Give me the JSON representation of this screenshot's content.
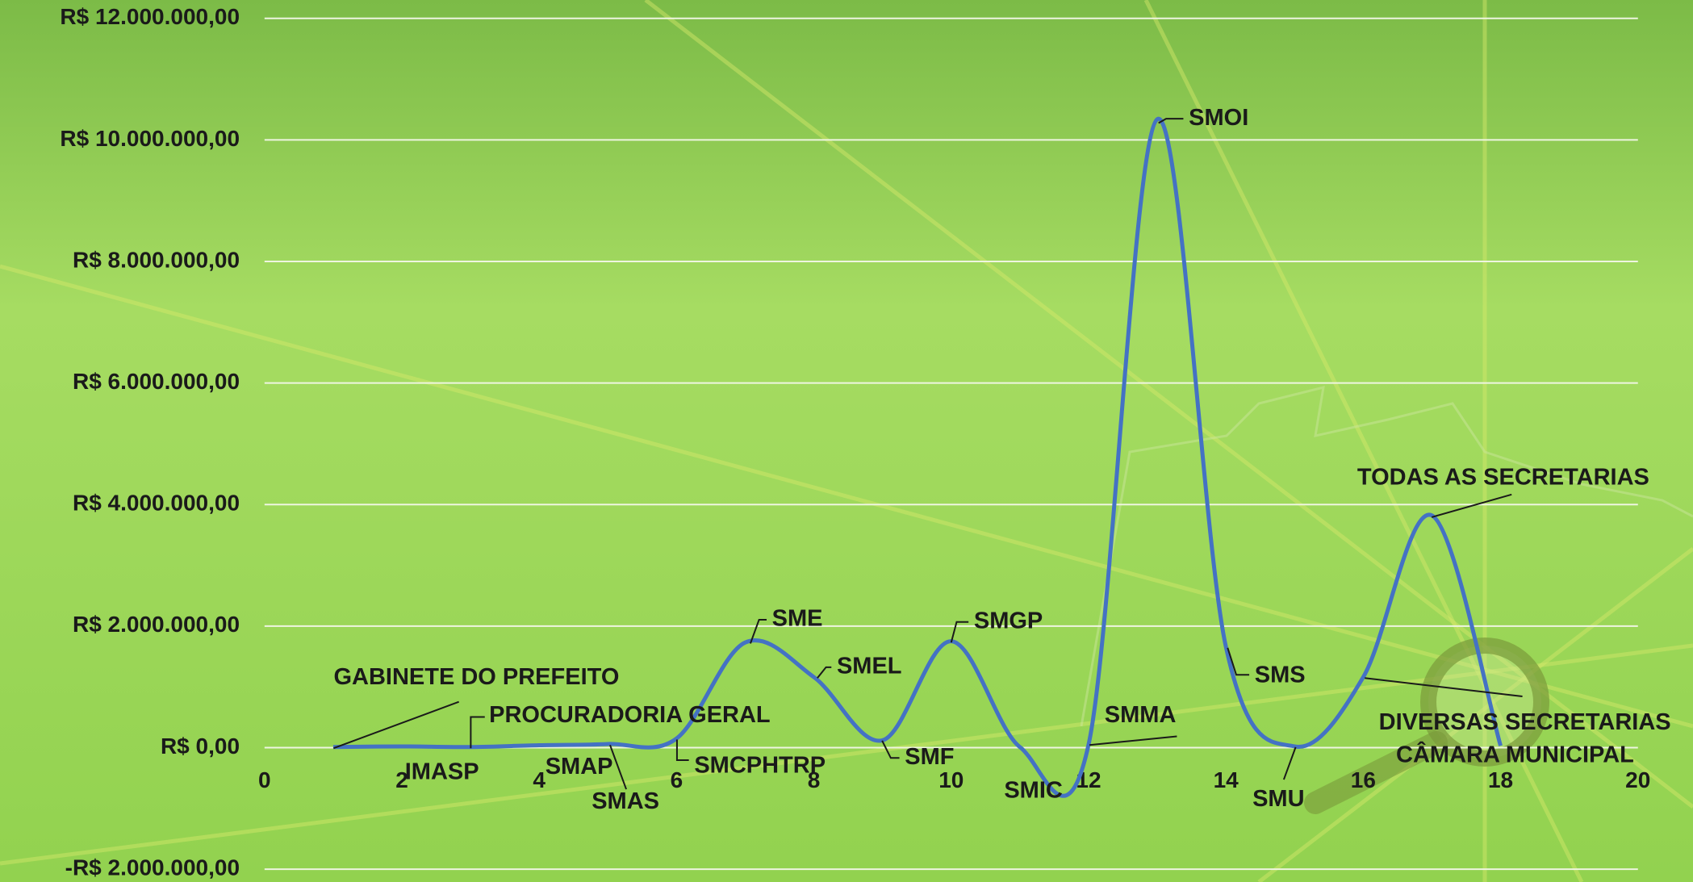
{
  "chart_data": {
    "type": "line",
    "xlim": [
      0,
      20
    ],
    "xticks": [
      0,
      2,
      4,
      6,
      8,
      10,
      12,
      14,
      16,
      18,
      20
    ],
    "ylim": [
      -2000000,
      12000000
    ],
    "yticks": [
      {
        "value": -2000000,
        "label": "-R$ 2.000.000,00"
      },
      {
        "value": 0,
        "label": "R$ 0,00"
      },
      {
        "value": 2000000,
        "label": "R$ 2.000.000,00"
      },
      {
        "value": 4000000,
        "label": "R$ 4.000.000,00"
      },
      {
        "value": 6000000,
        "label": "R$ 6.000.000,00"
      },
      {
        "value": 8000000,
        "label": "R$ 8.000.000,00"
      },
      {
        "value": 10000000,
        "label": "R$ 10.000.000,00"
      },
      {
        "value": 12000000,
        "label": "R$ 12.000.000,00"
      }
    ],
    "grid": true,
    "smooth": true,
    "series": [
      {
        "color": "#4472c4",
        "x": [
          1,
          2,
          3,
          4,
          5,
          6,
          7,
          8,
          9,
          10,
          11,
          12,
          13,
          14,
          15,
          16,
          17,
          18
        ],
        "values": [
          10000,
          20000,
          10000,
          40000,
          60000,
          150000,
          1730000,
          1160000,
          120000,
          1750000,
          10000,
          50000,
          10340000,
          1660000,
          20000,
          1160000,
          3820000,
          30000
        ],
        "point_labels": [
          "GABINETE DO PREFEITO",
          "IMASP",
          "PROCURADORIA GERAL",
          "SMAP",
          "SMAS",
          "SMCPHTRP",
          "SME",
          "SMEL",
          "SMF",
          "SMGP",
          "SMIC",
          "SMMA",
          "SMOI",
          "SMS",
          "SMU",
          "DIVERSAS SECRETARIAS",
          "TODAS AS SECRETARIAS",
          "CÂMARA MUNICIPAL"
        ]
      }
    ]
  }
}
